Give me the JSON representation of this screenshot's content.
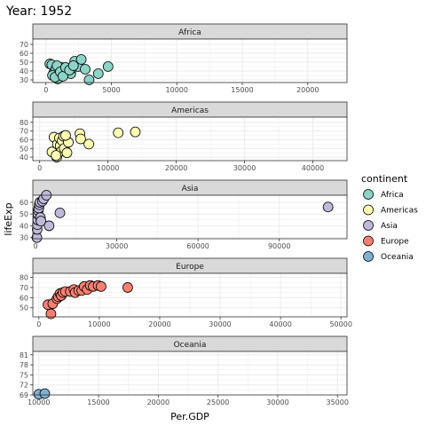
{
  "chart_data": {
    "type": "scatter",
    "title": "Year: 1952",
    "xlabel": "Per.GDP",
    "ylabel": "lifeExp",
    "grid": true,
    "legend": {
      "title": "continent",
      "position": "right",
      "entries": [
        "Africa",
        "Americas",
        "Asia",
        "Europe",
        "Oceania"
      ]
    },
    "colors": {
      "Africa": "#8DD3C7",
      "Americas": "#FFFFB3",
      "Asia": "#BEBADA",
      "Europe": "#FB8072",
      "Oceania": "#80B1D3",
      "strip": "#d9d9d9",
      "grid": "#ebebeb",
      "point_stroke": "#000000"
    },
    "panels": [
      {
        "name": "Africa",
        "xlim": [
          -1000,
          23000
        ],
        "ylim": [
          27,
          76
        ],
        "xticks": [
          0,
          5000,
          10000,
          15000,
          20000
        ],
        "xtick_labels": [
          "0",
          "5000",
          "10000",
          "15000",
          "20000"
        ],
        "yticks": [
          30,
          40,
          50,
          60,
          70
        ],
        "ytick_labels": [
          "30",
          "40",
          "50",
          "60",
          "70"
        ],
        "points": [
          [
            300,
            48
          ],
          [
            450,
            47
          ],
          [
            600,
            38
          ],
          [
            750,
            42
          ],
          [
            900,
            31
          ],
          [
            1000,
            36
          ],
          [
            1200,
            44
          ],
          [
            1400,
            40
          ],
          [
            1600,
            42
          ],
          [
            1900,
            37
          ],
          [
            2000,
            43
          ],
          [
            2200,
            51
          ],
          [
            2450,
            45
          ],
          [
            2700,
            53
          ],
          [
            3000,
            42
          ],
          [
            3300,
            30
          ],
          [
            4000,
            37
          ],
          [
            4750,
            45
          ],
          [
            500,
            35
          ],
          [
            700,
            33
          ],
          [
            850,
            46
          ],
          [
            1100,
            39
          ],
          [
            1300,
            34
          ],
          [
            1500,
            44
          ],
          [
            1800,
            41
          ],
          [
            2100,
            46
          ]
        ]
      },
      {
        "name": "Americas",
        "xlim": [
          -1000,
          45000
        ],
        "ylim": [
          36,
          86
        ],
        "xticks": [
          0,
          10000,
          20000,
          30000,
          40000
        ],
        "xtick_labels": [
          "0",
          "10000",
          "20000",
          "30000",
          "40000"
        ],
        "yticks": [
          40,
          50,
          60,
          70,
          80
        ],
        "ytick_labels": [
          "40",
          "50",
          "60",
          "70",
          "80"
        ],
        "points": [
          [
            1800,
            46
          ],
          [
            2100,
            63
          ],
          [
            2500,
            40
          ],
          [
            2600,
            55
          ],
          [
            2900,
            62
          ],
          [
            3000,
            53
          ],
          [
            3200,
            47
          ],
          [
            3300,
            59
          ],
          [
            3500,
            64
          ],
          [
            3600,
            50
          ],
          [
            4000,
            45
          ],
          [
            4200,
            57
          ],
          [
            5900,
            67
          ],
          [
            6000,
            61
          ],
          [
            7200,
            55
          ],
          [
            11500,
            68
          ],
          [
            14000,
            69
          ],
          [
            2400,
            42
          ],
          [
            3800,
            65
          ]
        ]
      },
      {
        "name": "Asia",
        "xlim": [
          -1000,
          115000
        ],
        "ylim": [
          29,
          66
        ],
        "xticks": [
          0,
          30000,
          60000,
          90000
        ],
        "xtick_labels": [
          "0",
          "30000",
          "60000",
          "90000"
        ],
        "yticks": [
          30,
          40,
          50,
          60
        ],
        "ytick_labels": [
          "30",
          "40",
          "50",
          "60"
        ],
        "points": [
          [
            500,
            30
          ],
          [
            600,
            37
          ],
          [
            700,
            41
          ],
          [
            800,
            45
          ],
          [
            900,
            50
          ],
          [
            1000,
            53
          ],
          [
            1200,
            55
          ],
          [
            1400,
            58
          ],
          [
            1600,
            60
          ],
          [
            1800,
            47
          ],
          [
            2000,
            44
          ],
          [
            2500,
            61
          ],
          [
            3000,
            63
          ],
          [
            4000,
            66
          ],
          [
            5000,
            40
          ],
          [
            9000,
            51
          ],
          [
            108000,
            56
          ]
        ]
      },
      {
        "name": "Europe",
        "xlim": [
          -1000,
          51000
        ],
        "ylim": [
          41,
          84
        ],
        "xticks": [
          0,
          10000,
          20000,
          30000,
          40000,
          50000
        ],
        "xtick_labels": [
          "0",
          "10000",
          "20000",
          "30000",
          "40000",
          "50000"
        ],
        "yticks": [
          50,
          60,
          70,
          80
        ],
        "ytick_labels": [
          "50",
          "60",
          "70",
          "80"
        ],
        "points": [
          [
            1500,
            53
          ],
          [
            2300,
            54
          ],
          [
            3000,
            59
          ],
          [
            3200,
            61
          ],
          [
            3500,
            64
          ],
          [
            3700,
            62
          ],
          [
            4000,
            65
          ],
          [
            4400,
            66
          ],
          [
            5200,
            66
          ],
          [
            5800,
            68
          ],
          [
            6000,
            65
          ],
          [
            6600,
            67
          ],
          [
            7100,
            67
          ],
          [
            7500,
            71
          ],
          [
            8000,
            68
          ],
          [
            8500,
            72
          ],
          [
            9000,
            71
          ],
          [
            9800,
            72
          ],
          [
            10300,
            71
          ],
          [
            14700,
            70
          ],
          [
            2000,
            44
          ]
        ]
      },
      {
        "name": "Oceania",
        "xlim": [
          9500,
          35800
        ],
        "ylim": [
          69,
          82
        ],
        "xticks": [
          10000,
          15000,
          20000,
          25000,
          30000,
          35000
        ],
        "xtick_labels": [
          "10000",
          "15000",
          "20000",
          "25000",
          "30000",
          "35000"
        ],
        "yticks": [
          69,
          72,
          75,
          78,
          81
        ],
        "ytick_labels": [
          "69",
          "72",
          "75",
          "78",
          "81"
        ],
        "points": [
          [
            10000,
            69.2
          ],
          [
            10500,
            69.4
          ]
        ]
      }
    ]
  }
}
